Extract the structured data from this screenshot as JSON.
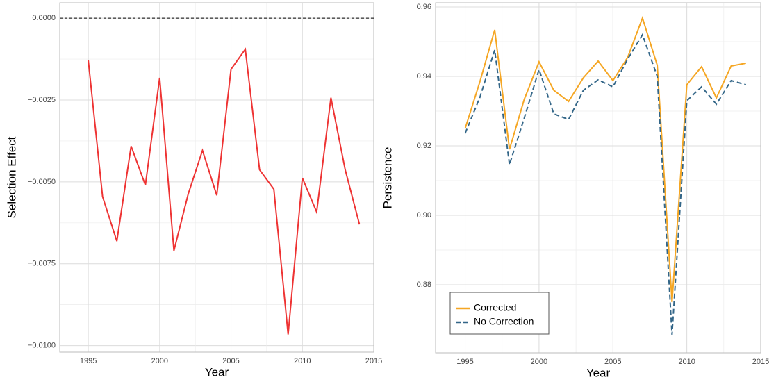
{
  "chart_data": [
    {
      "type": "line",
      "x_label": "Year",
      "y_label": "Selection Effect",
      "x": [
        1995,
        1996,
        1997,
        1998,
        1999,
        2000,
        2001,
        2002,
        2003,
        2004,
        2005,
        2006,
        2007,
        2008,
        2009,
        2010,
        2011,
        2012,
        2013,
        2014
      ],
      "series": [
        {
          "color": "#ee3333",
          "values": [
            -0.00129,
            -0.00545,
            -0.00681,
            -0.00391,
            -0.0051,
            -0.00182,
            -0.0071,
            -0.00537,
            -0.00404,
            -0.00541,
            -0.00156,
            -0.00095,
            -0.00463,
            -0.00522,
            -0.00966,
            -0.00488,
            -0.00592,
            -0.00243,
            -0.00463,
            -0.0063
          ]
        }
      ],
      "xlim": [
        1993,
        2015
      ],
      "xticks": [
        1995,
        2000,
        2005,
        2010,
        2015
      ],
      "ylim": [
        -0.0102,
        0.00047
      ],
      "yticks": [
        {
          "value": -0.01,
          "label": "−0.0100"
        },
        {
          "value": -0.0075,
          "label": "−0.0075"
        },
        {
          "value": -0.005,
          "label": "−0.0050"
        },
        {
          "value": -0.0025,
          "label": "−0.0025"
        },
        {
          "value": 0,
          "label": "0.0000"
        }
      ],
      "hline": 0,
      "grid": true
    },
    {
      "type": "line",
      "x_label": "Year",
      "y_label": "Persistence",
      "x": [
        1995,
        1996,
        1997,
        1998,
        1999,
        2000,
        2001,
        2002,
        2003,
        2004,
        2005,
        2006,
        2007,
        2008,
        2009,
        2010,
        2011,
        2012,
        2013,
        2014
      ],
      "series": [
        {
          "name": "Corrected",
          "color": "#f5a623",
          "dash": false,
          "values": [
            0.925,
            0.9385,
            0.9534,
            0.919,
            0.9334,
            0.9442,
            0.936,
            0.9328,
            0.9396,
            0.9444,
            0.9388,
            0.9455,
            0.9568,
            0.9432,
            0.875,
            0.9376,
            0.9428,
            0.9338,
            0.943,
            0.9438
          ]
        },
        {
          "name": "No Correction",
          "color": "#336688",
          "dash": true,
          "values": [
            0.9236,
            0.934,
            0.9476,
            0.9146,
            0.928,
            0.942,
            0.9292,
            0.9276,
            0.936,
            0.939,
            0.937,
            0.945,
            0.952,
            0.94,
            0.8656,
            0.933,
            0.937,
            0.932,
            0.9388,
            0.9376
          ]
        }
      ],
      "xlim": [
        1993,
        2015
      ],
      "xticks": [
        1995,
        2000,
        2005,
        2010,
        2015
      ],
      "ylim": [
        0.8604,
        0.9612
      ],
      "yticks": [
        0.88,
        {
          "value": 0.9,
          "label": "0.90"
        },
        0.92,
        0.94,
        0.96
      ],
      "legend": "bottom-left",
      "grid": true
    }
  ]
}
